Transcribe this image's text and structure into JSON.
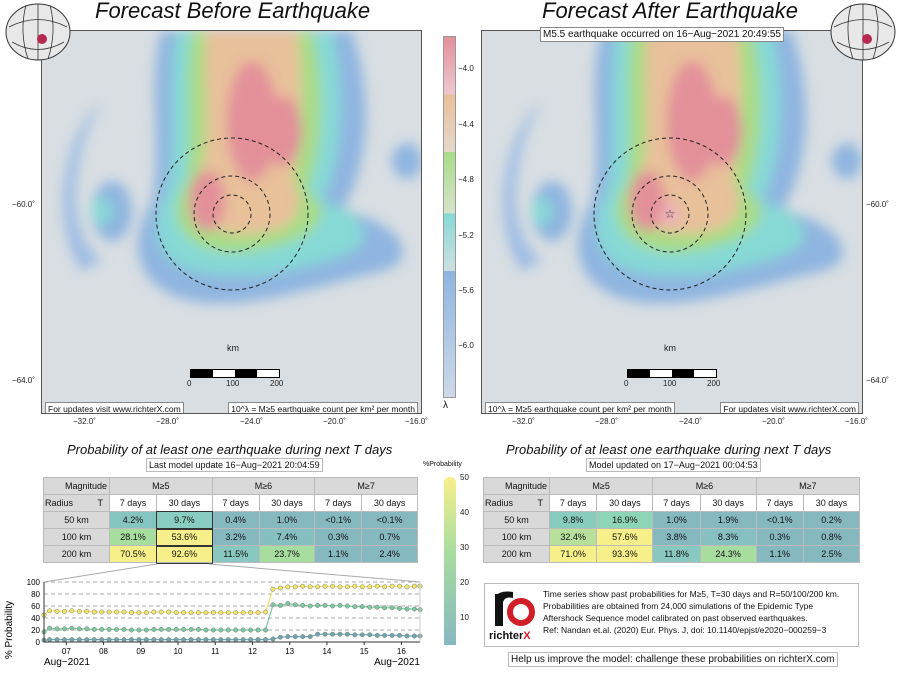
{
  "left_panel": {
    "title": "Forecast Before Earthquake",
    "updates_note": "For updates visit www.richterX.com",
    "lambda_note": "10^λ = M≥5 earthquake count per km² per month",
    "scale_label": "km",
    "scale_ticks": [
      "0",
      "100",
      "200"
    ],
    "lon_ticks": [
      "−32.0˚",
      "−28.0˚",
      "−24.0˚",
      "−20.0˚",
      "−16.0˚"
    ],
    "lat_ticks": [
      "−60.0˚",
      "−64.0˚"
    ],
    "prob_title": "Probability of at least one earthquake during next T days",
    "model_update": "Last model update 16−Aug−2021 20:04:59"
  },
  "right_panel": {
    "title": "Forecast After Earthquake",
    "event_note": "M5.5 earthquake occurred on 16−Aug−2021 20:49:55",
    "updates_note": "For updates visit www.richterX.com",
    "lambda_note": "10^λ = M≥5 earthquake count per km² per month",
    "scale_label": "km",
    "scale_ticks": [
      "0",
      "100",
      "200"
    ],
    "lon_ticks": [
      "−32.0˚",
      "−28.0˚",
      "−24.0˚",
      "−20.0˚",
      "−16.0˚"
    ],
    "lat_ticks": [
      "−60.0˚",
      "−64.0˚"
    ],
    "prob_title": "Probability of at least one earthquake during next T days",
    "model_update": "Model updated on 17−Aug−2021 00:04:53"
  },
  "colorbar_lambda": {
    "ticks": [
      "−4.0",
      "−4.4",
      "−4.8",
      "−5.2",
      "−5.6",
      "−6.0"
    ],
    "label": "λ",
    "colors": [
      "#e3909a",
      "#e8c09a",
      "#a9dc86",
      "#86d9d6",
      "#8fb5e0",
      "#cdd9e8"
    ]
  },
  "colorbar_prob": {
    "label": "%Probability",
    "ticks": [
      "50",
      "40",
      "30",
      "20",
      "10"
    ],
    "colors": [
      "#f7ef8a",
      "#86d1a8",
      "#86b8c0"
    ]
  },
  "table_headers": {
    "magnitude": "Magnitude",
    "radius": "Radius",
    "t": "T",
    "mags": [
      "M≥5",
      "M≥6",
      "M≥7"
    ],
    "periods": [
      "7 days",
      "30 days",
      "7 days",
      "30 days",
      "7 days",
      "30 days"
    ],
    "radii": [
      "50 km",
      "100 km",
      "200 km"
    ]
  },
  "table_before": [
    [
      "4.2%",
      "9.7%",
      "0.4%",
      "1.0%",
      "<0.1%",
      "<0.1%"
    ],
    [
      "28.1%",
      "53.6%",
      "3.2%",
      "7.4%",
      "0.3%",
      "0.7%"
    ],
    [
      "70.5%",
      "92.6%",
      "11.5%",
      "23.7%",
      "1.1%",
      "2.4%"
    ]
  ],
  "table_after": [
    [
      "9.8%",
      "16.9%",
      "1.0%",
      "1.9%",
      "<0.1%",
      "0.2%"
    ],
    [
      "32.4%",
      "57.6%",
      "3.8%",
      "8.3%",
      "0.3%",
      "0.8%"
    ],
    [
      "71.0%",
      "93.3%",
      "11.8%",
      "24.3%",
      "1.1%",
      "2.5%"
    ]
  ],
  "table_before_colors": [
    [
      "#86c4c0",
      "#88cdbf",
      "#86b8c0",
      "#86b8c0",
      "#86b8c0",
      "#86b8c0"
    ],
    [
      "#a8dda0",
      "#f7ef8a",
      "#86b8c0",
      "#86bfc0",
      "#86b8c0",
      "#86b8c0"
    ],
    [
      "#f7ef8a",
      "#f7ef8a",
      "#88c8c0",
      "#a8dda0",
      "#86b8c0",
      "#86b8c0"
    ]
  ],
  "table_after_colors": [
    [
      "#88cbbf",
      "#8ed4b6",
      "#86b8c0",
      "#86b8c0",
      "#86b8c0",
      "#86b8c0"
    ],
    [
      "#b6e09c",
      "#f7ef8a",
      "#86b8c0",
      "#86c0c0",
      "#86b8c0",
      "#86b8c0"
    ],
    [
      "#f7ef8a",
      "#f7ef8a",
      "#88c8c0",
      "#a8dda0",
      "#86b8c0",
      "#86b8c0"
    ]
  ],
  "chart_data": {
    "type": "line",
    "title": "",
    "ylabel": "% Probability",
    "ylim": [
      0,
      100
    ],
    "yticks": [
      "0",
      "20",
      "40",
      "60",
      "80",
      "100"
    ],
    "xtick_labels": [
      "07",
      "08",
      "09",
      "10",
      "11",
      "12",
      "13",
      "14",
      "15",
      "16"
    ],
    "x_start_label": "Aug−2021",
    "x_end_label": "Aug−2021",
    "x_range_days": [
      6.4,
      16.5
    ],
    "series": [
      {
        "name": "R=200 km",
        "color": "#f2e46a",
        "x": [
          6.4,
          6.55,
          6.75,
          6.95,
          7.15,
          7.35,
          7.55,
          7.75,
          7.95,
          8.15,
          8.35,
          8.55,
          8.75,
          8.95,
          9.15,
          9.35,
          9.55,
          9.75,
          9.95,
          10.15,
          10.35,
          10.55,
          10.75,
          10.95,
          11.15,
          11.35,
          11.55,
          11.75,
          11.95,
          12.15,
          12.35,
          12.55,
          12.75,
          12.95,
          13.15,
          13.35,
          13.55,
          13.75,
          13.95,
          14.15,
          14.35,
          14.55,
          14.75,
          14.95,
          15.15,
          15.35,
          15.55,
          15.75,
          15.95,
          16.15,
          16.35,
          16.5
        ],
        "y": [
          45,
          52,
          51,
          51,
          52,
          51,
          51,
          50,
          50,
          50,
          50,
          50,
          49,
          49,
          49,
          50,
          50,
          50,
          49,
          49,
          49,
          49,
          49,
          49,
          49,
          49,
          49,
          49,
          49,
          49,
          50,
          88,
          90,
          92,
          92,
          93,
          92,
          92,
          93,
          93,
          92,
          92,
          93,
          92,
          92,
          93,
          92,
          93,
          93,
          92,
          93,
          93
        ]
      },
      {
        "name": "R=100 km",
        "color": "#7cc9a0",
        "x": [
          6.4,
          6.55,
          6.75,
          6.95,
          7.15,
          7.35,
          7.55,
          7.75,
          7.95,
          8.15,
          8.35,
          8.55,
          8.75,
          8.95,
          9.15,
          9.35,
          9.55,
          9.75,
          9.95,
          10.15,
          10.35,
          10.55,
          10.75,
          10.95,
          11.15,
          11.35,
          11.55,
          11.75,
          11.95,
          12.15,
          12.35,
          12.55,
          12.75,
          12.95,
          13.15,
          13.35,
          13.55,
          13.75,
          13.95,
          14.15,
          14.35,
          14.55,
          14.75,
          14.95,
          15.15,
          15.35,
          15.55,
          15.75,
          15.95,
          16.15,
          16.35,
          16.5
        ],
        "y": [
          17,
          23,
          22,
          22,
          23,
          22,
          22,
          21,
          21,
          21,
          21,
          21,
          20,
          20,
          20,
          21,
          21,
          21,
          21,
          21,
          21,
          21,
          20,
          20,
          20,
          20,
          20,
          20,
          20,
          20,
          20,
          62,
          61,
          64,
          62,
          61,
          60,
          61,
          61,
          60,
          61,
          60,
          59,
          59,
          58,
          58,
          57,
          57,
          56,
          55,
          55,
          54
        ]
      },
      {
        "name": "R=50 km",
        "color": "#6fa6ae",
        "x": [
          6.4,
          6.55,
          6.75,
          6.95,
          7.15,
          7.35,
          7.55,
          7.75,
          7.95,
          8.15,
          8.35,
          8.55,
          8.75,
          8.95,
          9.15,
          9.35,
          9.55,
          9.75,
          9.95,
          10.15,
          10.35,
          10.55,
          10.75,
          10.95,
          11.15,
          11.35,
          11.55,
          11.75,
          11.95,
          12.15,
          12.35,
          12.55,
          12.75,
          12.95,
          13.15,
          13.35,
          13.55,
          13.75,
          13.95,
          14.15,
          14.35,
          14.55,
          14.75,
          14.95,
          15.15,
          15.35,
          15.55,
          15.75,
          15.95,
          16.15,
          16.35,
          16.5
        ],
        "y": [
          3,
          4,
          4,
          4,
          4,
          4,
          4,
          4,
          4,
          4,
          4,
          4,
          4,
          4,
          4,
          4,
          4,
          4,
          4,
          4,
          4,
          4,
          4,
          4,
          4,
          4,
          4,
          4,
          4,
          4,
          4,
          5,
          8,
          9,
          9,
          9,
          9,
          13,
          13,
          13,
          13,
          13,
          12,
          12,
          12,
          11,
          11,
          11,
          11,
          10,
          10,
          10
        ]
      }
    ]
  },
  "info_box": {
    "logo_text": "richter",
    "logo_x": "X",
    "lines": [
      "Time series show past probabilities for M≥5, T=30 days and R=50/100/200 km.",
      "Probabilities are obtained from 24,000 simulations of the Epidemic Type",
      "Aftershock Sequence model calibrated on past observed earthquakes.",
      "Ref: Nandan et.al. (2020) Eur. Phys. J, doi: 10.1140/epjst/e2020−000259−3"
    ]
  },
  "help_text": "Help us improve the model: challenge these probabilities on richterX.com"
}
